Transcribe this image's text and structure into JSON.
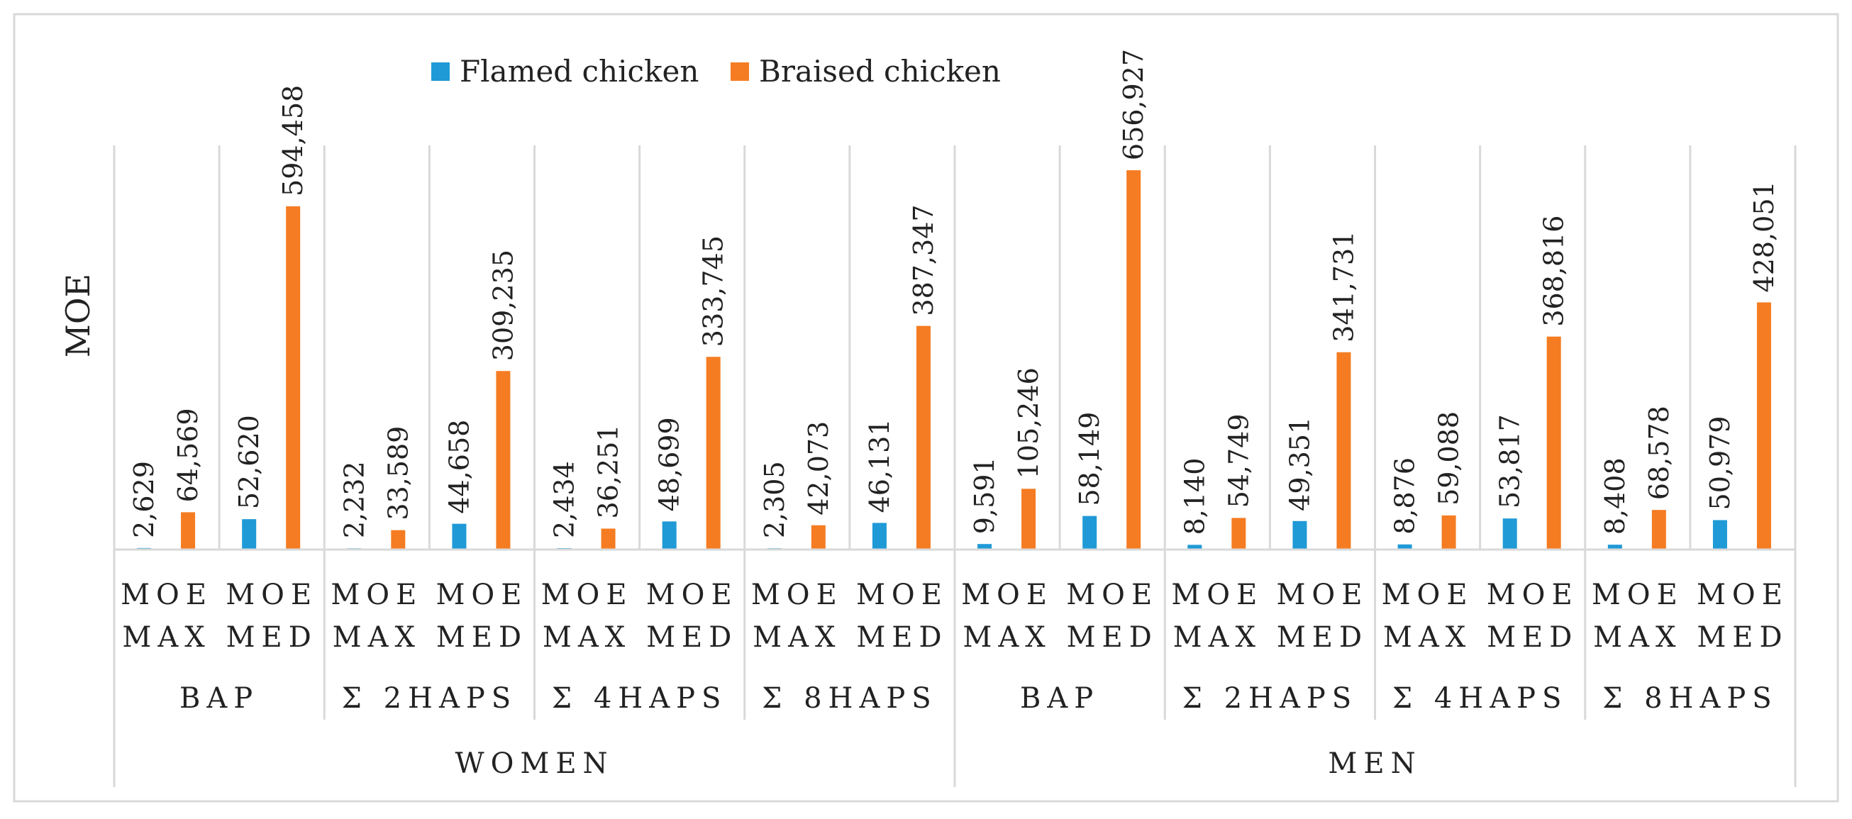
{
  "chart_data": {
    "type": "bar",
    "title": "",
    "ylabel": "MOE",
    "xlabel": "",
    "ylim": [
      0,
      700000
    ],
    "colors": {
      "Flamed chicken": "#1f9ad6",
      "Braised chicken": "#f57c22",
      "frame": "#d9d9d9"
    },
    "legend": [
      "Flamed chicken",
      "Braised chicken"
    ],
    "legend_position": "top-center",
    "genders": [
      {
        "label": "WOMEN",
        "groups": [
          0,
          1,
          2,
          3
        ]
      },
      {
        "label": "MEN",
        "groups": [
          4,
          5,
          6,
          7
        ]
      }
    ],
    "groups": [
      "BAP",
      "Σ 2HAPS",
      "Σ 4HAPS",
      "Σ 8HAPS",
      "BAP",
      "Σ 2HAPS",
      "Σ 4HAPS",
      "Σ 8HAPS"
    ],
    "categories": [
      [
        "MOE",
        "MAX"
      ],
      [
        "MOE",
        "MED"
      ],
      [
        "MOE",
        "MAX"
      ],
      [
        "MOE",
        "MED"
      ],
      [
        "MOE",
        "MAX"
      ],
      [
        "MOE",
        "MED"
      ],
      [
        "MOE",
        "MAX"
      ],
      [
        "MOE",
        "MED"
      ],
      [
        "MOE",
        "MAX"
      ],
      [
        "MOE",
        "MED"
      ],
      [
        "MOE",
        "MAX"
      ],
      [
        "MOE",
        "MED"
      ],
      [
        "MOE",
        "MAX"
      ],
      [
        "MOE",
        "MED"
      ],
      [
        "MOE",
        "MAX"
      ],
      [
        "MOE",
        "MED"
      ]
    ],
    "series": [
      {
        "name": "Flamed chicken",
        "values": [
          2629,
          52620,
          2232,
          44658,
          2434,
          48699,
          2305,
          46131,
          9591,
          58149,
          8140,
          49351,
          8876,
          53817,
          8408,
          50979
        ],
        "labels": [
          "2,629",
          "52,620",
          "2,232",
          "44,658",
          "2,434",
          "48,699",
          "2,305",
          "46,131",
          "9,591",
          "58,149",
          "8,140",
          "49,351",
          "8,876",
          "53,817",
          "8,408",
          "50,979"
        ]
      },
      {
        "name": "Braised chicken",
        "values": [
          64569,
          594458,
          33589,
          309235,
          36251,
          333745,
          42073,
          387347,
          105246,
          656927,
          54749,
          341731,
          59088,
          368816,
          68578,
          428051
        ],
        "labels": [
          "64,569",
          "594,458",
          "33,589",
          "309,235",
          "36,251",
          "333,745",
          "42,073",
          "387,347",
          "105,246",
          "656,927",
          "54,749",
          "341,731",
          "59,088",
          "368,816",
          "68,578",
          "428,051"
        ]
      }
    ]
  }
}
